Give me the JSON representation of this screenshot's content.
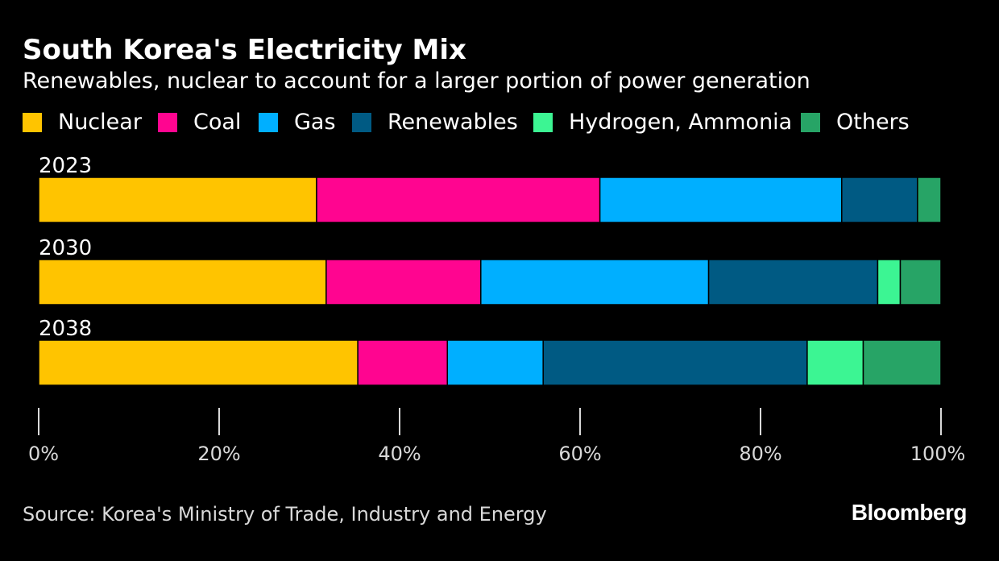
{
  "header": {
    "title": "South Korea's Electricity Mix",
    "subtitle": "Renewables, nuclear to account for a larger portion of power generation"
  },
  "legend": {
    "items": [
      {
        "label": "Nuclear",
        "color": "#FFC400"
      },
      {
        "label": "Coal",
        "color": "#FF0590"
      },
      {
        "label": "Gas",
        "color": "#00AFFF"
      },
      {
        "label": "Renewables",
        "color": "#005A83"
      },
      {
        "label": "Hydrogen, Ammonia",
        "color": "#3CF593"
      },
      {
        "label": "Others",
        "color": "#27A466"
      }
    ]
  },
  "chart_data": {
    "type": "bar",
    "orientation": "horizontal",
    "stacked": true,
    "title": "South Korea's Electricity Mix",
    "subtitle": "Renewables, nuclear to account for a larger portion of power generation",
    "categories": [
      "2023",
      "2030",
      "2038"
    ],
    "series": [
      {
        "name": "Nuclear",
        "color": "#FFC400",
        "values": [
          30.8,
          31.8,
          35.3
        ]
      },
      {
        "name": "Coal",
        "color": "#FF0590",
        "values": [
          31.4,
          17.1,
          9.9
        ]
      },
      {
        "name": "Gas",
        "color": "#00AFFF",
        "values": [
          26.8,
          25.2,
          10.6
        ]
      },
      {
        "name": "Renewables",
        "color": "#005A83",
        "values": [
          8.4,
          18.7,
          29.2
        ]
      },
      {
        "name": "Hydrogen, Ammonia",
        "color": "#3CF593",
        "values": [
          0.0,
          2.5,
          6.2
        ]
      },
      {
        "name": "Others",
        "color": "#27A466",
        "values": [
          2.6,
          4.5,
          8.6
        ]
      }
    ],
    "x_axis": {
      "ticks": [
        0,
        20,
        40,
        60,
        80,
        100
      ],
      "tick_labels": [
        "0%",
        "20%",
        "40%",
        "60%",
        "80%",
        "100%"
      ],
      "range": [
        0,
        100
      ]
    },
    "grid": false,
    "legend_position": "top-left"
  },
  "footer": {
    "source": "Source: Korea's Ministry of Trade, Industry and Energy",
    "brand": "Bloomberg"
  }
}
